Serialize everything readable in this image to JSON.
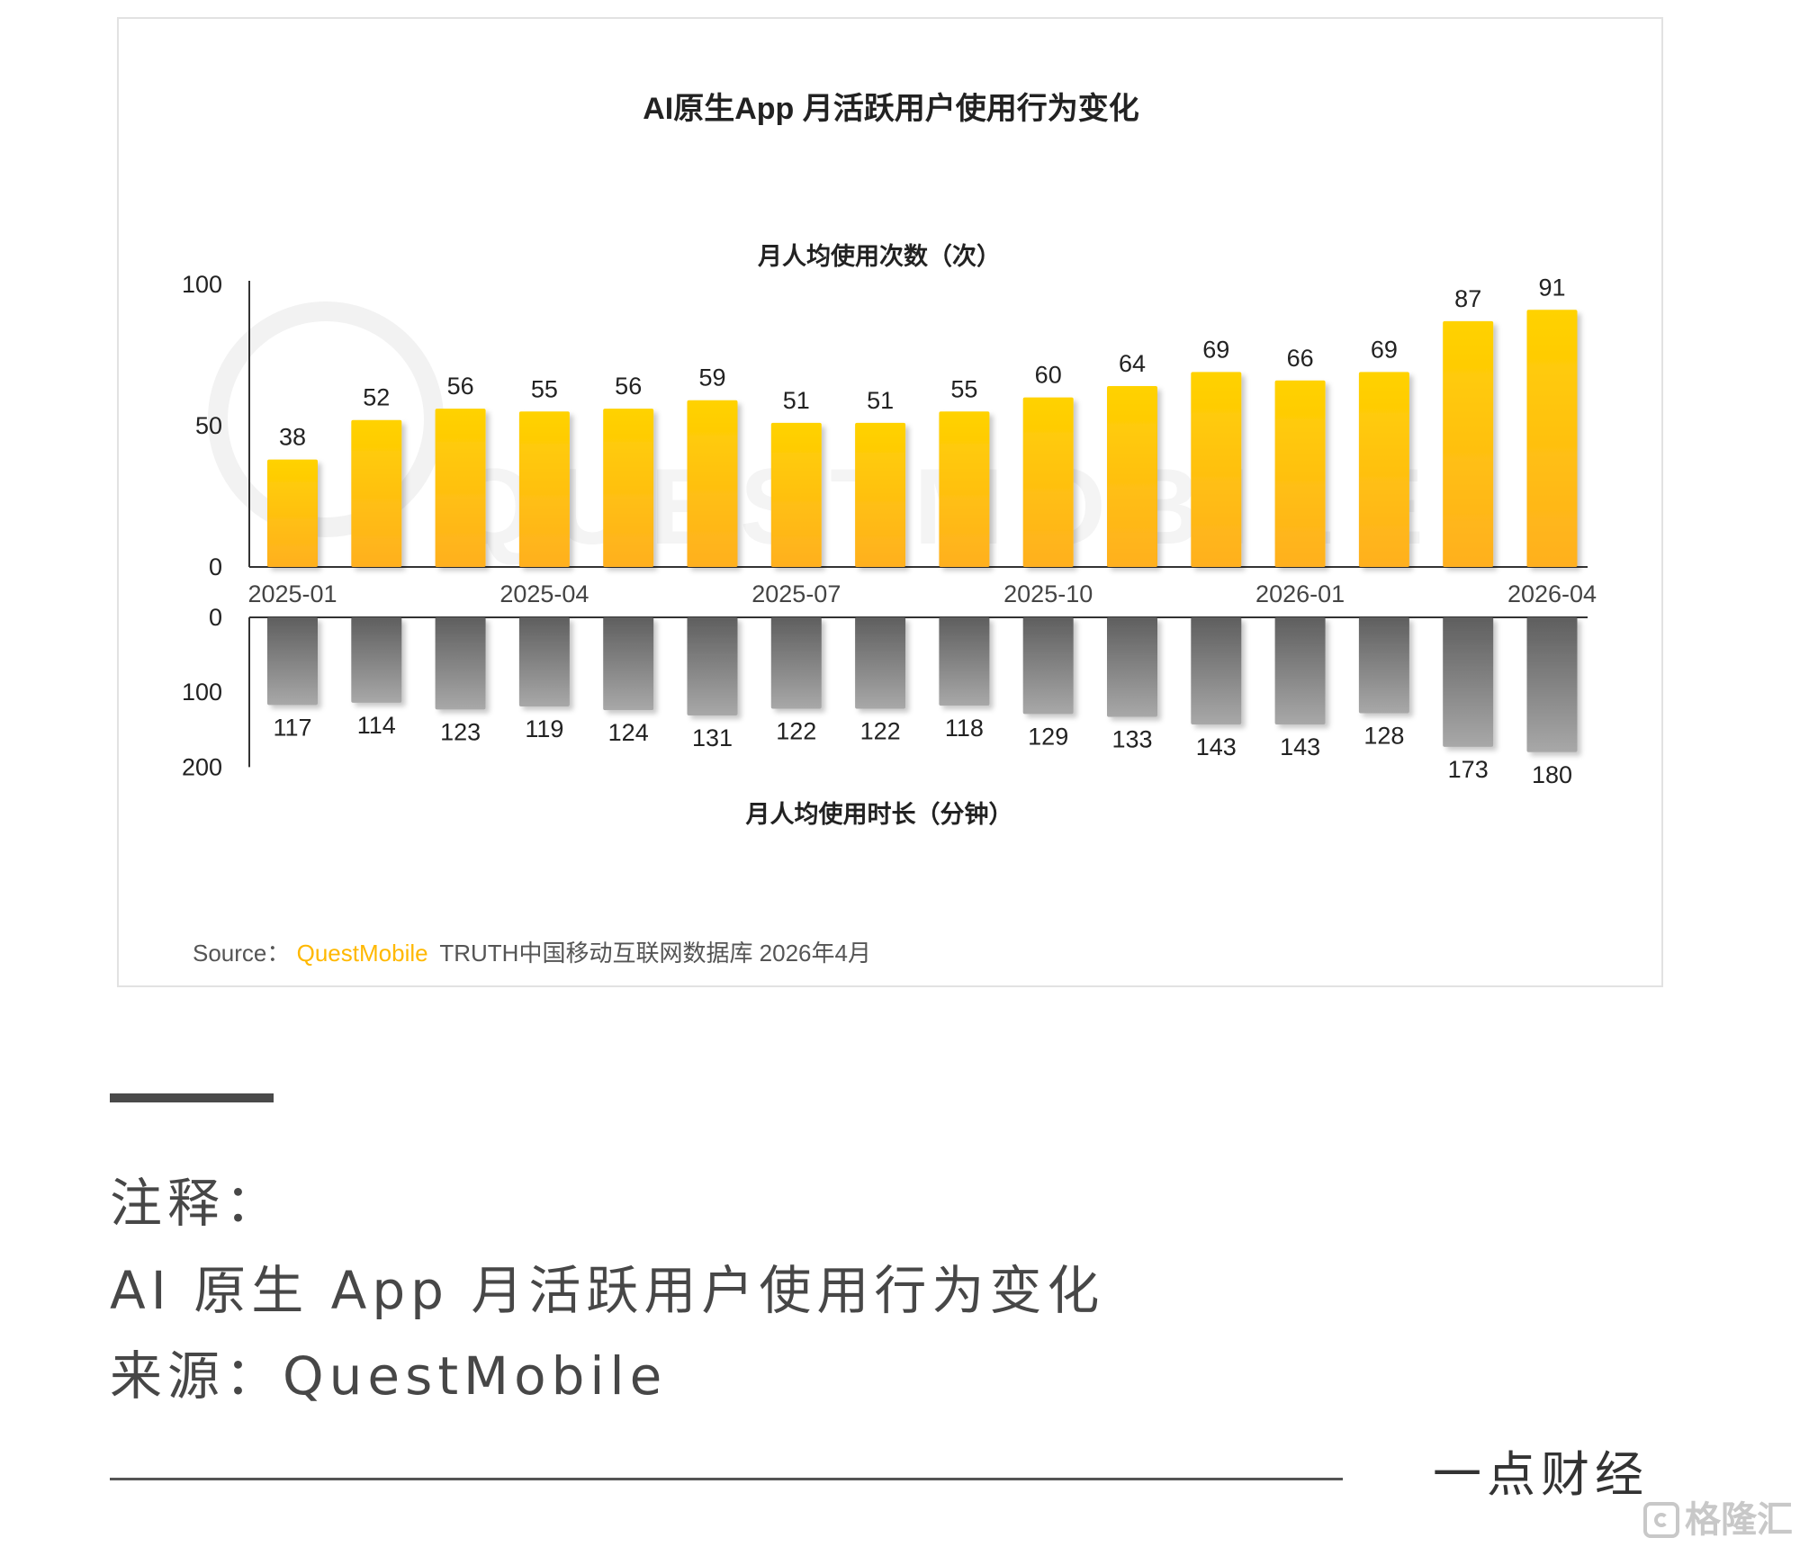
{
  "chart_data": {
    "type": "bar",
    "title": "AI原生App 月活跃用户使用行为变化",
    "categories": [
      "2025-01",
      "2025-02",
      "2025-03",
      "2025-04",
      "2025-05",
      "2025-06",
      "2025-07",
      "2025-08",
      "2025-09",
      "2025-10",
      "2025-11",
      "2025-12",
      "2026-01",
      "2026-02",
      "2026-03",
      "2026-04"
    ],
    "x_tick_labels": [
      "2025-01",
      "2025-04",
      "2025-07",
      "2025-10",
      "2026-01",
      "2026-04"
    ],
    "series": [
      {
        "name": "月人均使用次数（次）",
        "values": [
          38,
          52,
          56,
          55,
          56,
          59,
          51,
          51,
          55,
          60,
          64,
          69,
          66,
          69,
          87,
          91
        ],
        "ylim": [
          0,
          100
        ],
        "yticks": [
          0,
          50,
          100
        ],
        "color": "#FFC000"
      },
      {
        "name": "月人均使用时长（分钟）",
        "values": [
          117,
          114,
          123,
          119,
          124,
          131,
          122,
          122,
          118,
          129,
          133,
          143,
          143,
          128,
          173,
          180
        ],
        "ylim": [
          0,
          200
        ],
        "yticks": [
          0,
          100,
          200
        ],
        "direction": "down",
        "color": "#7f7f7f"
      }
    ],
    "watermark": "QUESTMOBILE",
    "source": {
      "prefix": "Source：",
      "brand": "QuestMobile",
      "text": "TRUTH中国移动互联网数据库 2026年4月",
      "brand_color": "#FFB800"
    }
  },
  "notes": {
    "heading": "注释：",
    "line1": "AI 原生 App 月活跃用户使用行为变化",
    "line2": "来源：QuestMobile"
  },
  "footer": {
    "brand": "一点财经",
    "watermark": "格隆汇",
    "watermark_icon": "g-logo-icon"
  }
}
